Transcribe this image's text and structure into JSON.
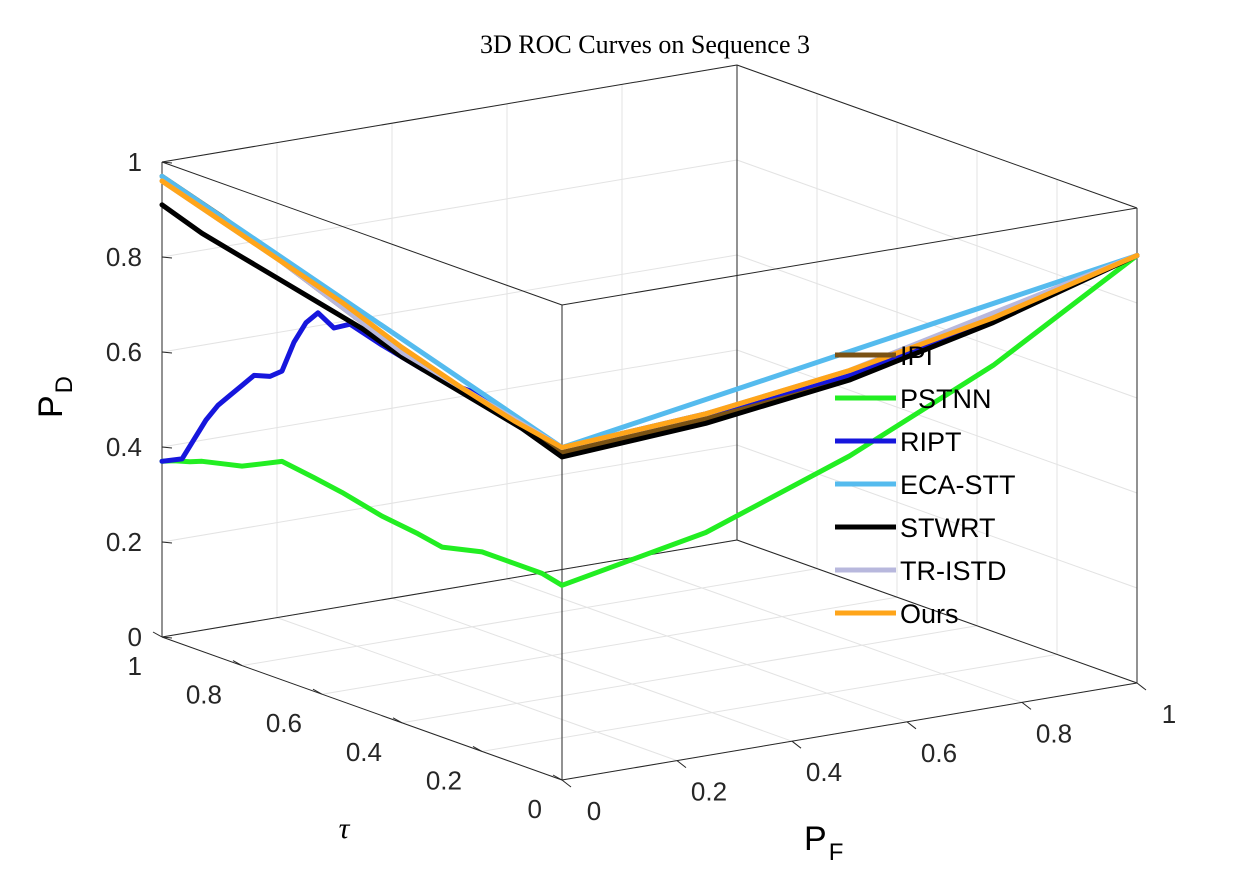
{
  "chart_data": {
    "type": "line",
    "title": "3D ROC Curves on Sequence 3",
    "axes": {
      "x": {
        "name": "PF",
        "label": "P",
        "subscript": "F",
        "ticks": [
          "0",
          "0.2",
          "0.4",
          "0.6",
          "0.8",
          "1"
        ],
        "lim": [
          0,
          1
        ]
      },
      "y": {
        "name": "tau",
        "label": "τ",
        "ticks": [
          "0",
          "0.2",
          "0.4",
          "0.6",
          "0.8",
          "1"
        ],
        "lim": [
          0,
          1
        ]
      },
      "z": {
        "name": "PD",
        "label": "P",
        "subscript": "D",
        "ticks": [
          "0",
          "0.2",
          "0.4",
          "0.6",
          "0.8",
          "1"
        ],
        "lim": [
          0,
          1
        ]
      }
    },
    "grid": true,
    "legend_position": "right",
    "series": [
      {
        "name": "IPI",
        "color": "#7a5214",
        "tau_pd": [
          [
            1.0,
            0.97
          ],
          [
            0.85,
            0.93
          ],
          [
            0.7,
            0.88
          ],
          [
            0.55,
            0.83
          ],
          [
            0.4,
            0.78
          ],
          [
            0.25,
            0.75
          ],
          [
            0.12,
            0.72
          ],
          [
            0.0,
            0.69
          ]
        ],
        "pf_pd": [
          [
            0.0,
            0.69
          ],
          [
            0.25,
            0.71
          ],
          [
            0.5,
            0.75
          ],
          [
            0.75,
            0.82
          ],
          [
            1.0,
            0.9
          ]
        ]
      },
      {
        "name": "PSTNN",
        "color": "#22ee22",
        "tau_pd": [
          [
            1.0,
            0.37
          ],
          [
            0.97,
            0.38
          ],
          [
            0.93,
            0.39
          ],
          [
            0.9,
            0.4
          ],
          [
            0.85,
            0.41
          ],
          [
            0.8,
            0.42
          ],
          [
            0.75,
            0.44
          ],
          [
            0.7,
            0.46
          ],
          [
            0.62,
            0.45
          ],
          [
            0.55,
            0.44
          ],
          [
            0.45,
            0.42
          ],
          [
            0.36,
            0.41
          ],
          [
            0.3,
            0.4
          ],
          [
            0.25,
            0.41
          ],
          [
            0.2,
            0.42
          ],
          [
            0.12,
            0.42
          ],
          [
            0.05,
            0.42
          ],
          [
            0.0,
            0.41
          ]
        ],
        "pf_pd": [
          [
            0.0,
            0.41
          ],
          [
            0.25,
            0.47
          ],
          [
            0.5,
            0.58
          ],
          [
            0.75,
            0.72
          ],
          [
            1.0,
            0.9
          ]
        ]
      },
      {
        "name": "RIPT",
        "color": "#1616dd",
        "tau_pd": [
          [
            1.0,
            0.37
          ],
          [
            0.95,
            0.39
          ],
          [
            0.92,
            0.44
          ],
          [
            0.89,
            0.49
          ],
          [
            0.86,
            0.53
          ],
          [
            0.83,
            0.56
          ],
          [
            0.8,
            0.59
          ],
          [
            0.77,
            0.62
          ],
          [
            0.73,
            0.63
          ],
          [
            0.7,
            0.65
          ],
          [
            0.67,
            0.72
          ],
          [
            0.64,
            0.77
          ],
          [
            0.61,
            0.8
          ],
          [
            0.57,
            0.78
          ],
          [
            0.53,
            0.8
          ],
          [
            0.45,
            0.78
          ],
          [
            0.35,
            0.76
          ],
          [
            0.28,
            0.75
          ],
          [
            0.2,
            0.75
          ],
          [
            0.1,
            0.72
          ],
          [
            0.0,
            0.7
          ]
        ],
        "pf_pd": [
          [
            0.0,
            0.7
          ],
          [
            0.25,
            0.72
          ],
          [
            0.5,
            0.75
          ],
          [
            0.75,
            0.82
          ],
          [
            1.0,
            0.9
          ]
        ]
      },
      {
        "name": "ECA-STT",
        "color": "#55bbee",
        "tau_pd": [
          [
            1.0,
            0.97
          ],
          [
            0.0,
            0.7
          ]
        ],
        "pf_pd": [
          [
            0.0,
            0.7
          ],
          [
            1.0,
            0.9
          ]
        ]
      },
      {
        "name": "STWRT",
        "color": "#000000",
        "tau_pd": [
          [
            1.0,
            0.91
          ],
          [
            0.9,
            0.88
          ],
          [
            0.8,
            0.86
          ],
          [
            0.7,
            0.84
          ],
          [
            0.6,
            0.82
          ],
          [
            0.5,
            0.8
          ],
          [
            0.4,
            0.77
          ],
          [
            0.3,
            0.75
          ],
          [
            0.2,
            0.73
          ],
          [
            0.1,
            0.71
          ],
          [
            0.0,
            0.68
          ]
        ],
        "pf_pd": [
          [
            0.0,
            0.68
          ],
          [
            0.25,
            0.7
          ],
          [
            0.5,
            0.74
          ],
          [
            0.75,
            0.81
          ],
          [
            1.0,
            0.9
          ]
        ]
      },
      {
        "name": "TR-ISTD",
        "color": "#b8b8dd",
        "tau_pd": [
          [
            1.0,
            0.96
          ],
          [
            0.85,
            0.92
          ],
          [
            0.7,
            0.88
          ],
          [
            0.55,
            0.83
          ],
          [
            0.4,
            0.78
          ],
          [
            0.3,
            0.76
          ],
          [
            0.2,
            0.74
          ],
          [
            0.1,
            0.72
          ],
          [
            0.0,
            0.7
          ]
        ],
        "pf_pd": [
          [
            0.0,
            0.7
          ],
          [
            0.25,
            0.72
          ],
          [
            0.5,
            0.76
          ],
          [
            0.75,
            0.83
          ],
          [
            1.0,
            0.9
          ]
        ]
      },
      {
        "name": "Ours",
        "color": "#ffa51a",
        "tau_pd": [
          [
            1.0,
            0.96
          ],
          [
            0.85,
            0.92
          ],
          [
            0.7,
            0.88
          ],
          [
            0.55,
            0.84
          ],
          [
            0.4,
            0.79
          ],
          [
            0.25,
            0.75
          ],
          [
            0.12,
            0.72
          ],
          [
            0.0,
            0.7
          ]
        ],
        "pf_pd": [
          [
            0.0,
            0.7
          ],
          [
            0.25,
            0.72
          ],
          [
            0.5,
            0.76
          ],
          [
            0.75,
            0.82
          ],
          [
            1.0,
            0.9
          ]
        ]
      }
    ]
  }
}
